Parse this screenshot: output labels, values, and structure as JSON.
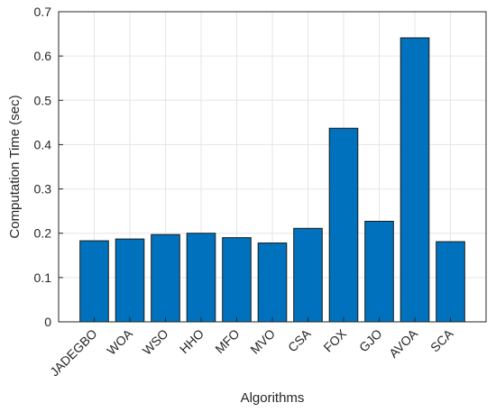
{
  "chart_data": {
    "type": "bar",
    "title": "",
    "xlabel": "Algorithms",
    "ylabel": "Computation Time (sec)",
    "categories": [
      "JADEGBO",
      "WOA",
      "WSO",
      "HHO",
      "MFO",
      "MVO",
      "CSA",
      "FOX",
      "GJO",
      "AVOA",
      "SCA"
    ],
    "values": [
      0.183,
      0.187,
      0.197,
      0.2,
      0.19,
      0.178,
      0.211,
      0.437,
      0.227,
      0.641,
      0.181
    ],
    "ylim": [
      0,
      0.7
    ],
    "yticks": [
      "0",
      "0.1",
      "0.2",
      "0.3",
      "0.4",
      "0.5",
      "0.6",
      "0.7"
    ],
    "grid": true,
    "legend": "none",
    "bar_color": "#0072BD"
  }
}
